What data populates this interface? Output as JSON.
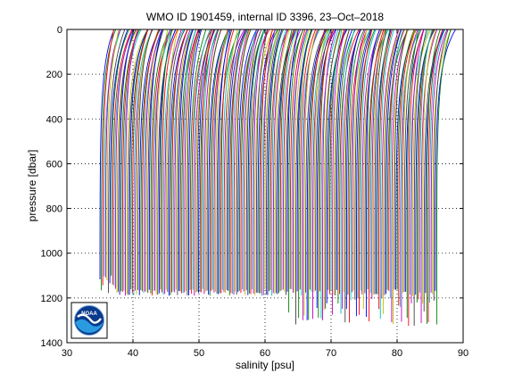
{
  "chart_data": {
    "type": "line",
    "title": "WMO ID 1901459, internal ID 3396, 23–Oct–2018",
    "xlabel": "salinity [psu]",
    "ylabel": "pressure [dbar]",
    "xlim": [
      30,
      90
    ],
    "ylim": [
      0,
      1400
    ],
    "y_inverted": true,
    "x_ticks": [
      30,
      40,
      50,
      60,
      70,
      80,
      90
    ],
    "y_ticks": [
      0,
      200,
      400,
      600,
      800,
      1000,
      1200,
      1400
    ],
    "x_tick_labels": [
      "30",
      "40",
      "50",
      "60",
      "70",
      "80",
      "90"
    ],
    "y_tick_labels": [
      "0",
      "200",
      "400",
      "600",
      "800",
      "1000",
      "1200",
      "1400"
    ],
    "grid": "dotted",
    "legend": "none",
    "series_colors": [
      "#0000ff",
      "#008000",
      "#ff0000",
      "#00bfbf",
      "#bf00bf",
      "#bfbf00",
      "#404040"
    ],
    "profiles": {
      "count": 240,
      "deep_salinity_start": 35.0,
      "deep_salinity_end": 86.0,
      "surface_offset": 1.8,
      "surface_salinity_range": [
        36.5,
        88.5
      ],
      "max_pressure_typical": 1175,
      "max_pressure_range": [
        1100,
        1325
      ]
    },
    "logo": {
      "name": "noaa-logo",
      "text": "NOAA"
    }
  }
}
